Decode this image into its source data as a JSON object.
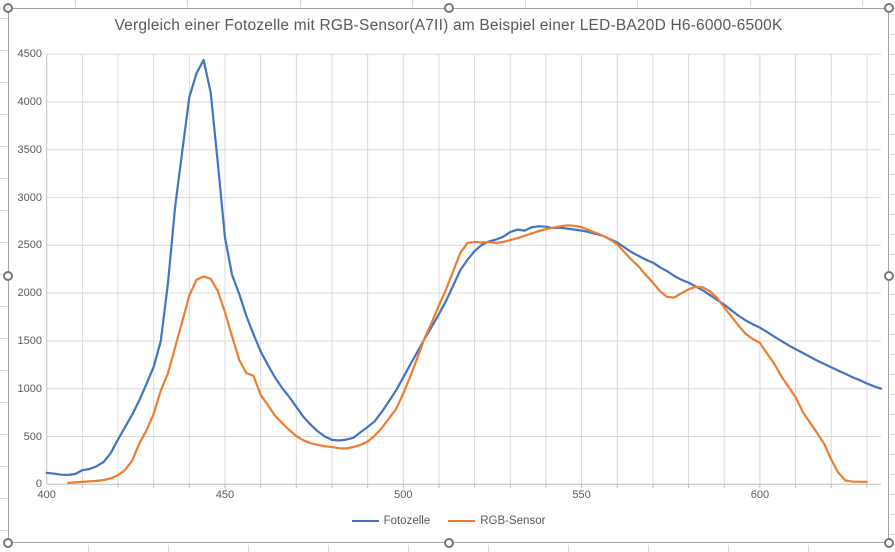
{
  "chart_data": {
    "type": "line",
    "title": "Vergleich einer Fotozelle mit RGB-Sensor(A7II) am Beispiel einer LED-BA20D H6-6000-6500K",
    "xlabel": "",
    "ylabel": "",
    "x_ticks": [
      400,
      450,
      500,
      550,
      600
    ],
    "y_ticks": [
      0,
      500,
      1000,
      1500,
      2000,
      2500,
      3000,
      3500,
      4000,
      4500
    ],
    "xlim": [
      400,
      634
    ],
    "ylim": [
      0,
      4500
    ],
    "grid": true,
    "minor_x_grid_step": 10,
    "legend_position": "bottom",
    "x": [
      400,
      402,
      404,
      406,
      408,
      410,
      412,
      414,
      416,
      418,
      420,
      422,
      424,
      426,
      428,
      430,
      432,
      434,
      436,
      438,
      440,
      442,
      444,
      446,
      448,
      450,
      452,
      454,
      456,
      458,
      460,
      462,
      464,
      466,
      468,
      470,
      472,
      474,
      476,
      478,
      480,
      482,
      484,
      486,
      488,
      490,
      492,
      494,
      496,
      498,
      500,
      502,
      504,
      506,
      508,
      510,
      512,
      514,
      516,
      518,
      520,
      522,
      524,
      526,
      528,
      530,
      532,
      534,
      536,
      538,
      540,
      542,
      544,
      546,
      548,
      550,
      552,
      554,
      556,
      558,
      560,
      562,
      564,
      566,
      568,
      570,
      572,
      574,
      576,
      578,
      580,
      582,
      584,
      586,
      588,
      590,
      592,
      594,
      596,
      598,
      600,
      602,
      604,
      606,
      608,
      610,
      612,
      614,
      616,
      618,
      620,
      622,
      624,
      626,
      628,
      630,
      632,
      634
    ],
    "series": [
      {
        "name": "Fotozelle",
        "color": "#4472C4",
        "values": [
          120,
          112,
          100,
          98,
          108,
          148,
          160,
          188,
          235,
          330,
          470,
          600,
          730,
          880,
          1050,
          1230,
          1500,
          2100,
          2900,
          3480,
          4050,
          4300,
          4440,
          4100,
          3350,
          2580,
          2190,
          1990,
          1760,
          1570,
          1390,
          1250,
          1120,
          1010,
          915,
          810,
          705,
          625,
          555,
          500,
          465,
          458,
          468,
          487,
          545,
          600,
          660,
          760,
          870,
          985,
          1120,
          1255,
          1390,
          1525,
          1650,
          1780,
          1920,
          2080,
          2240,
          2350,
          2440,
          2505,
          2540,
          2560,
          2590,
          2640,
          2665,
          2655,
          2690,
          2700,
          2695,
          2680,
          2685,
          2675,
          2665,
          2655,
          2640,
          2620,
          2600,
          2565,
          2530,
          2480,
          2430,
          2390,
          2350,
          2320,
          2270,
          2230,
          2180,
          2140,
          2110,
          2070,
          2030,
          1980,
          1930,
          1880,
          1820,
          1765,
          1715,
          1675,
          1640,
          1595,
          1545,
          1500,
          1455,
          1415,
          1375,
          1335,
          1295,
          1260,
          1225,
          1190,
          1155,
          1120,
          1090,
          1055,
          1025,
          1000
        ]
      },
      {
        "name": "RGB-Sensor",
        "color": "#ED7D31",
        "values": [
          null,
          null,
          null,
          15,
          20,
          25,
          30,
          36,
          45,
          62,
          95,
          150,
          250,
          430,
          565,
          740,
          980,
          1160,
          1430,
          1700,
          1975,
          2140,
          2175,
          2150,
          2020,
          1800,
          1545,
          1300,
          1165,
          1135,
          935,
          830,
          720,
          640,
          568,
          505,
          460,
          430,
          413,
          398,
          390,
          378,
          375,
          390,
          412,
          447,
          510,
          590,
          690,
          790,
          950,
          1130,
          1330,
          1530,
          1695,
          1870,
          2040,
          2230,
          2420,
          2525,
          2535,
          2530,
          2535,
          2525,
          2535,
          2555,
          2575,
          2600,
          2625,
          2650,
          2670,
          2685,
          2700,
          2710,
          2705,
          2690,
          2660,
          2630,
          2600,
          2560,
          2510,
          2430,
          2350,
          2280,
          2190,
          2110,
          2020,
          1960,
          1955,
          2000,
          2040,
          2065,
          2060,
          2020,
          1950,
          1850,
          1755,
          1660,
          1575,
          1520,
          1480,
          1370,
          1265,
          1130,
          1020,
          915,
          760,
          650,
          540,
          425,
          260,
          120,
          40,
          28,
          26,
          25,
          null,
          null
        ]
      }
    ]
  },
  "colors": {
    "gridline": "#D9D9D9",
    "axis_line": "#BFBFBF",
    "tick_text": "#595959",
    "title_text": "#595959",
    "chart_border": "#A3A3A3",
    "sheet_gridline": "#D9D9D9"
  }
}
